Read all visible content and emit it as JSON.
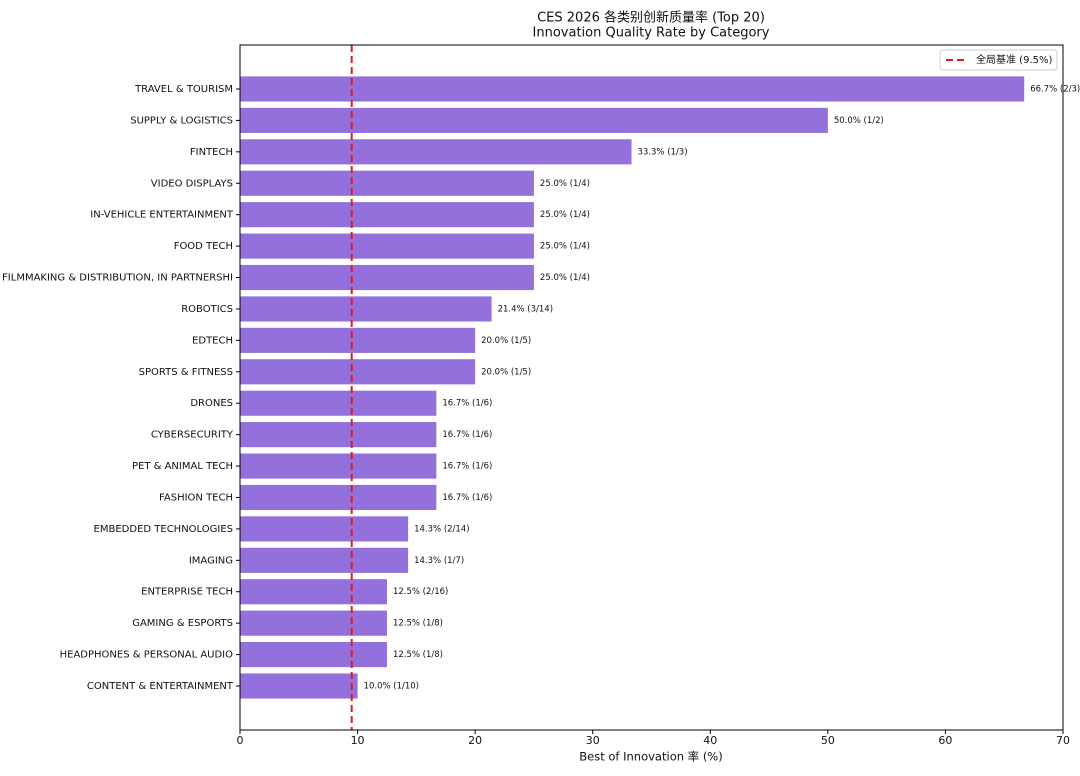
{
  "chart_data": {
    "type": "hbar",
    "title": "CES 2026 各类别创新质量率 (Top 20)",
    "subtitle": "Innovation Quality Rate by Category",
    "xlabel": "Best of Innovation 率 (%)",
    "categories": [
      "TRAVEL & TOURISM",
      "SUPPLY & LOGISTICS",
      "FINTECH",
      "VIDEO DISPLAYS",
      "IN-VEHICLE ENTERTAINMENT",
      "FOOD TECH",
      "FILMMAKING & DISTRIBUTION, IN PARTNERSHI",
      "ROBOTICS",
      "EDTECH",
      "SPORTS & FITNESS",
      "DRONES",
      "CYBERSECURITY",
      "PET & ANIMAL TECH",
      "FASHION TECH",
      "EMBEDDED TECHNOLOGIES",
      "IMAGING",
      "ENTERPRISE TECH",
      "GAMING & ESPORTS",
      "HEADPHONES & PERSONAL AUDIO",
      "CONTENT & ENTERTAINMENT"
    ],
    "values": [
      66.7,
      50.0,
      33.3,
      25.0,
      25.0,
      25.0,
      25.0,
      21.4,
      20.0,
      20.0,
      16.7,
      16.7,
      16.7,
      16.7,
      14.3,
      14.3,
      12.5,
      12.5,
      12.5,
      10.0
    ],
    "value_labels": [
      "66.7% (2/3)",
      "50.0% (1/2)",
      "33.3% (1/3)",
      "25.0% (1/4)",
      "25.0% (1/4)",
      "25.0% (1/4)",
      "25.0% (1/4)",
      "21.4% (3/14)",
      "20.0% (1/5)",
      "20.0% (1/5)",
      "16.7% (1/6)",
      "16.7% (1/6)",
      "16.7% (1/6)",
      "16.7% (1/6)",
      "14.3% (2/14)",
      "14.3% (1/7)",
      "12.5% (2/16)",
      "12.5% (1/8)",
      "12.5% (1/8)",
      "10.0% (1/10)"
    ],
    "color": "#9370db",
    "xlim": [
      0,
      70
    ],
    "xticks": [
      0,
      10,
      20,
      30,
      40,
      50,
      60,
      70
    ],
    "grid": false,
    "reference_line": {
      "value": 9.5,
      "label": "全局基准 (9.5%)",
      "color": "#e31a1c"
    },
    "legend": "upper right"
  }
}
